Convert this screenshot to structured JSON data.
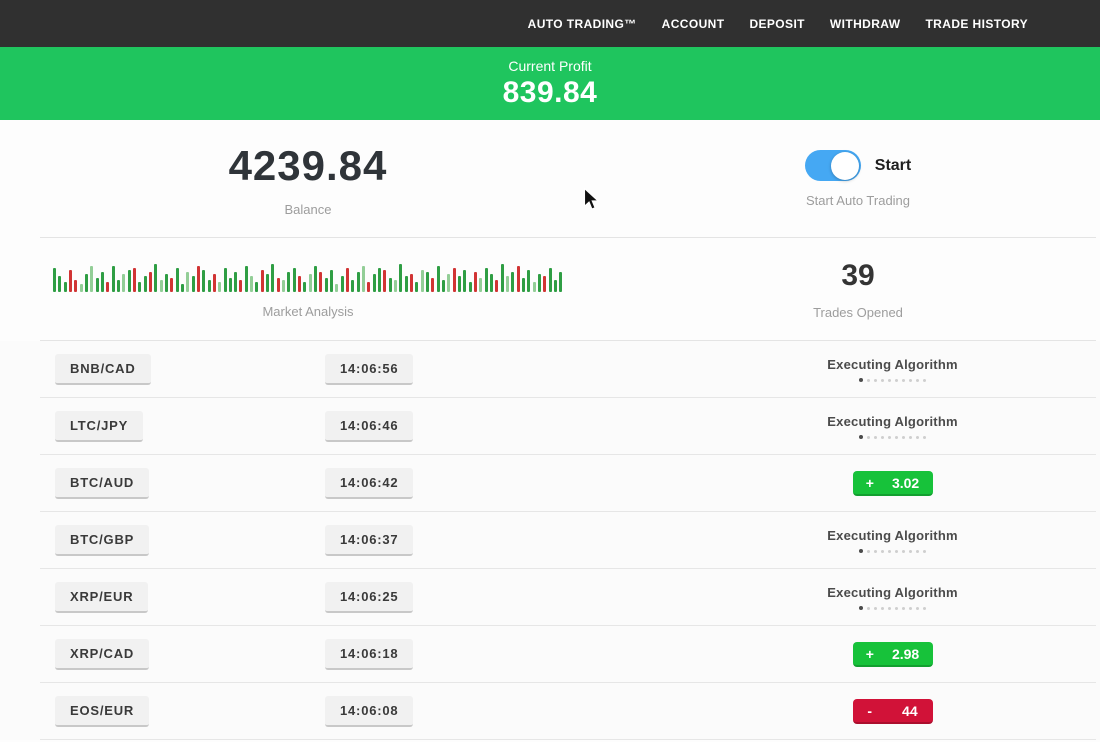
{
  "nav": {
    "items": [
      "AUTO TRADING™",
      "ACCOUNT",
      "DEPOSIT",
      "WITHDRAW",
      "TRADE HISTORY"
    ]
  },
  "profit_banner": {
    "label": "Current Profit",
    "value": "839.84"
  },
  "summary": {
    "balance": {
      "value": "4239.84",
      "label": "Balance"
    },
    "auto_trading": {
      "toggle_label": "Start",
      "caption": "Start Auto Trading",
      "toggle_on": true
    },
    "market_analysis": {
      "label": "Market Analysis"
    },
    "trades_opened": {
      "value": "39",
      "label": "Trades Opened"
    }
  },
  "trades": [
    {
      "pair": "BNB/CAD",
      "time": "14:06:56",
      "status": "executing",
      "status_text": "Executing Algorithm"
    },
    {
      "pair": "LTC/JPY",
      "time": "14:06:46",
      "status": "executing",
      "status_text": "Executing Algorithm"
    },
    {
      "pair": "BTC/AUD",
      "time": "14:06:42",
      "status": "profit",
      "sign": "+",
      "amount": "3.02"
    },
    {
      "pair": "BTC/GBP",
      "time": "14:06:37",
      "status": "executing",
      "status_text": "Executing Algorithm"
    },
    {
      "pair": "XRP/EUR",
      "time": "14:06:25",
      "status": "executing",
      "status_text": "Executing Algorithm"
    },
    {
      "pair": "XRP/CAD",
      "time": "14:06:18",
      "status": "profit",
      "sign": "+",
      "amount": "2.98"
    },
    {
      "pair": "EOS/EUR",
      "time": "14:06:08",
      "status": "loss",
      "sign": "-",
      "amount": "44"
    }
  ],
  "chart_data": {
    "type": "bar",
    "title": "Market Analysis",
    "description": "Decorative strip of green/red candlestick-style bars, heights in px (max 28), bottom-aligned",
    "palette": {
      "g": "#2f9e44",
      "G": "#93ce97",
      "r": "#d13434",
      "R": "#e2a0a0"
    },
    "bars": [
      "g24",
      "g16",
      "g10",
      "r22",
      "r12",
      "G8",
      "g18",
      "G26",
      "g14",
      "g20",
      "r10",
      "g26",
      "g12",
      "G18",
      "g22",
      "r24",
      "g10",
      "g16",
      "r20",
      "g28",
      "G12",
      "g18",
      "r14",
      "g24",
      "g8",
      "G20",
      "g16",
      "r26",
      "g22",
      "g12",
      "r18",
      "G10",
      "g24",
      "g14",
      "g20",
      "r12",
      "g26",
      "G16",
      "g10",
      "r22",
      "g18",
      "g28",
      "r14",
      "G12",
      "g20",
      "g24",
      "r16",
      "g10",
      "G18",
      "g26",
      "r20",
      "g14",
      "g22",
      "G8",
      "g16",
      "r24",
      "g12",
      "g20",
      "G26",
      "r10",
      "g18",
      "g24",
      "r22",
      "g14",
      "G12",
      "g28",
      "g16",
      "r18",
      "g10",
      "G22",
      "g20",
      "r14",
      "g26",
      "g12",
      "G18",
      "r24",
      "g16",
      "g22",
      "g10",
      "r20",
      "G14",
      "g24",
      "g18",
      "r12",
      "g28",
      "G16",
      "g20",
      "r26",
      "g14",
      "g22",
      "G10",
      "g18",
      "r16",
      "g24",
      "g12",
      "g20"
    ]
  },
  "status_dots_count": 10,
  "colors": {
    "nav_bg": "#303030",
    "banner_green": "#1fc55e",
    "profit_badge_green": "#17c23a",
    "loss_badge_red": "#d11238",
    "toggle_blue": "#45a8f3"
  }
}
